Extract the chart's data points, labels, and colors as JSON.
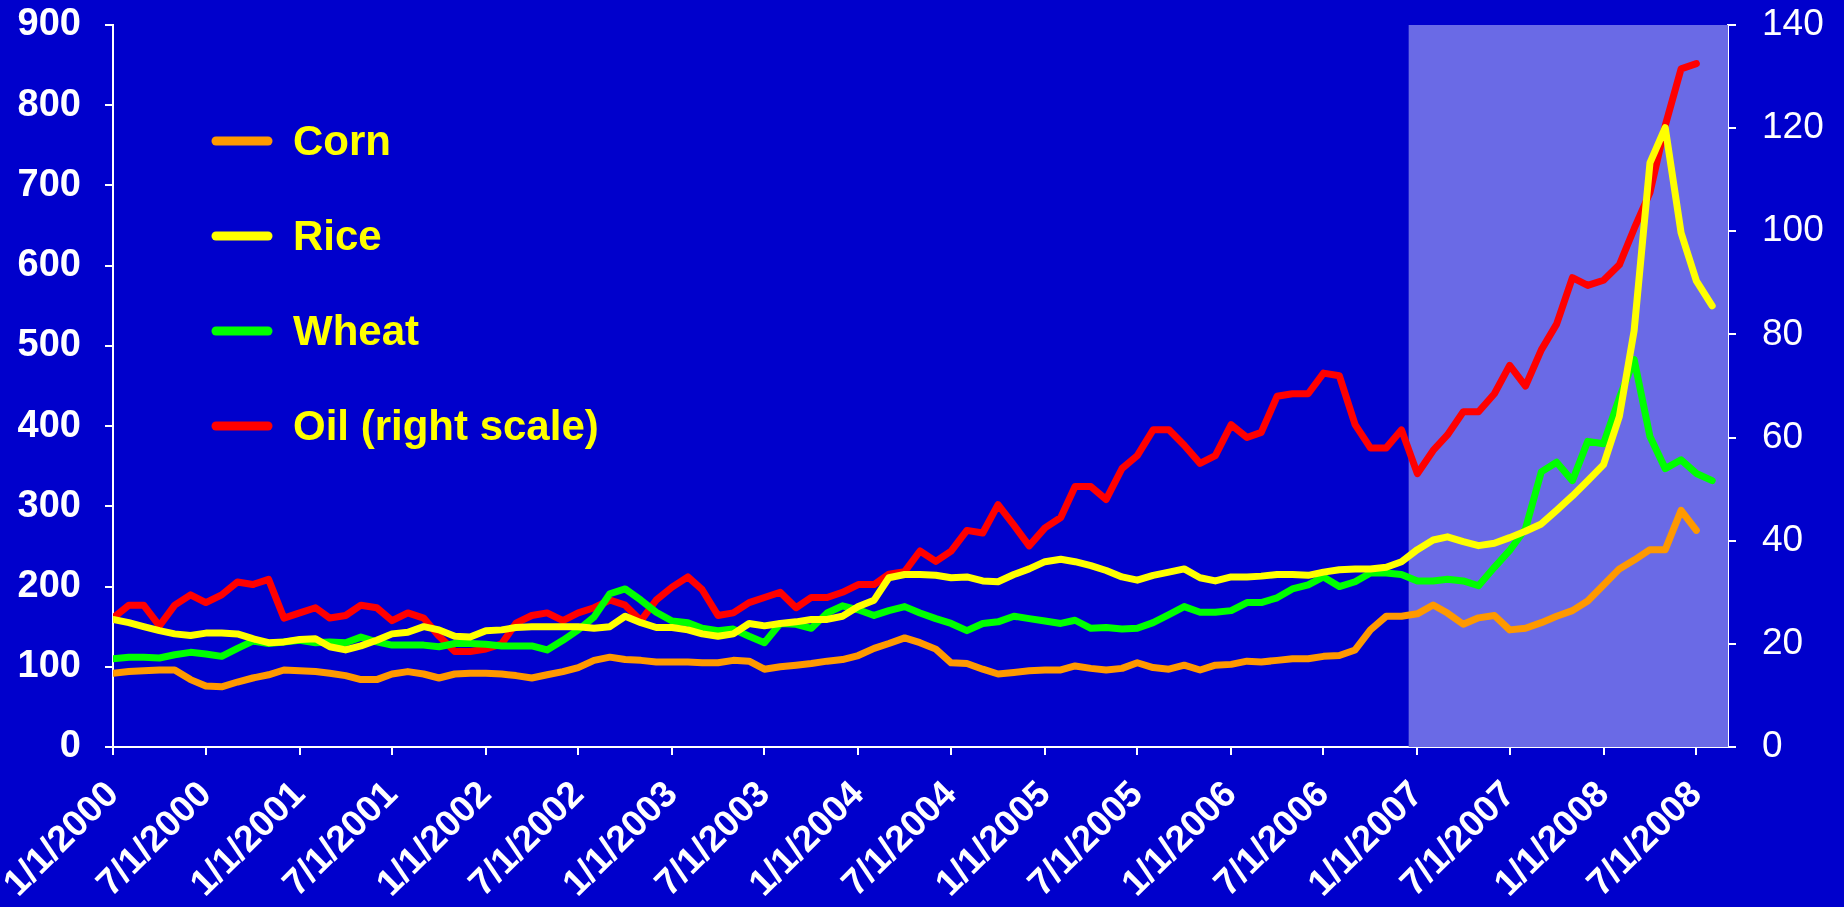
{
  "chart_data": {
    "type": "line",
    "x": [
      "2000-01",
      "2000-02",
      "2000-03",
      "2000-04",
      "2000-05",
      "2000-06",
      "2000-07",
      "2000-08",
      "2000-09",
      "2000-10",
      "2000-11",
      "2000-12",
      "2001-01",
      "2001-02",
      "2001-03",
      "2001-04",
      "2001-05",
      "2001-06",
      "2001-07",
      "2001-08",
      "2001-09",
      "2001-10",
      "2001-11",
      "2001-12",
      "2002-01",
      "2002-02",
      "2002-03",
      "2002-04",
      "2002-05",
      "2002-06",
      "2002-07",
      "2002-08",
      "2002-09",
      "2002-10",
      "2002-11",
      "2002-12",
      "2003-01",
      "2003-02",
      "2003-03",
      "2003-04",
      "2003-05",
      "2003-06",
      "2003-07",
      "2003-08",
      "2003-09",
      "2003-10",
      "2003-11",
      "2003-12",
      "2004-01",
      "2004-02",
      "2004-03",
      "2004-04",
      "2004-05",
      "2004-06",
      "2004-07",
      "2004-08",
      "2004-09",
      "2004-10",
      "2004-11",
      "2004-12",
      "2005-01",
      "2005-02",
      "2005-03",
      "2005-04",
      "2005-05",
      "2005-06",
      "2005-07",
      "2005-08",
      "2005-09",
      "2005-10",
      "2005-11",
      "2005-12",
      "2006-01",
      "2006-02",
      "2006-03",
      "2006-04",
      "2006-05",
      "2006-06",
      "2006-07",
      "2006-08",
      "2006-09",
      "2006-10",
      "2006-11",
      "2006-12",
      "2007-01",
      "2007-02",
      "2007-03",
      "2007-04",
      "2007-05",
      "2007-06",
      "2007-07",
      "2007-08",
      "2007-09",
      "2007-10",
      "2007-11",
      "2007-12",
      "2008-01",
      "2008-02",
      "2008-03",
      "2008-04",
      "2008-05",
      "2008-06",
      "2008-07",
      "2008-08"
    ],
    "series": [
      {
        "name": "Corn",
        "color": "#ff9900",
        "values": [
          92,
          94,
          95,
          96,
          96,
          84,
          76,
          75,
          81,
          86,
          90,
          96,
          95,
          94,
          92,
          89,
          84,
          84,
          91,
          94,
          91,
          86,
          91,
          92,
          92,
          91,
          89,
          86,
          90,
          94,
          99,
          108,
          112,
          109,
          108,
          106,
          106,
          106,
          105,
          105,
          108,
          107,
          97,
          100,
          102,
          104,
          107,
          109,
          114,
          123,
          129,
          136,
          130,
          122,
          105,
          104,
          97,
          91,
          93,
          95,
          96,
          96,
          101,
          98,
          96,
          98,
          105,
          99,
          97,
          102,
          96,
          102,
          103,
          107,
          106,
          108,
          110,
          110,
          113,
          114,
          121,
          146,
          163,
          163,
          166,
          177,
          167,
          153,
          161,
          164,
          146,
          148,
          155,
          163,
          170,
          182,
          202,
          222,
          233,
          246,
          246,
          295,
          270,
          null
        ]
      },
      {
        "name": "Rice",
        "color": "#ffff00",
        "values": [
          159,
          155,
          150,
          145,
          141,
          139,
          142,
          142,
          141,
          135,
          130,
          131,
          134,
          135,
          125,
          121,
          126,
          133,
          141,
          143,
          150,
          146,
          138,
          137,
          145,
          146,
          149,
          150,
          150,
          150,
          150,
          148,
          150,
          163,
          155,
          149,
          149,
          146,
          141,
          138,
          141,
          154,
          151,
          154,
          156,
          159,
          159,
          163,
          175,
          183,
          211,
          215,
          215,
          214,
          211,
          212,
          207,
          206,
          215,
          222,
          231,
          234,
          231,
          226,
          220,
          212,
          208,
          214,
          218,
          222,
          211,
          207,
          212,
          212,
          213,
          215,
          215,
          214,
          218,
          221,
          222,
          222,
          224,
          231,
          246,
          258,
          262,
          256,
          251,
          254,
          261,
          269,
          278,
          295,
          313,
          332,
          352,
          412,
          519,
          728,
          772,
          641,
          581,
          550
        ]
      },
      {
        "name": "Wheat",
        "color": "#00ff00",
        "values": [
          110,
          112,
          112,
          111,
          115,
          118,
          116,
          113,
          123,
          132,
          129,
          131,
          133,
          130,
          131,
          130,
          137,
          131,
          127,
          127,
          127,
          125,
          129,
          129,
          128,
          126,
          126,
          126,
          121,
          133,
          146,
          162,
          191,
          197,
          183,
          168,
          157,
          155,
          148,
          145,
          147,
          138,
          130,
          154,
          153,
          148,
          167,
          176,
          171,
          164,
          170,
          175,
          167,
          160,
          154,
          145,
          154,
          156,
          163,
          160,
          157,
          154,
          158,
          148,
          149,
          147,
          148,
          155,
          165,
          175,
          168,
          168,
          170,
          180,
          180,
          186,
          197,
          202,
          212,
          200,
          206,
          217,
          217,
          215,
          207,
          207,
          209,
          207,
          201,
          224,
          245,
          272,
          343,
          355,
          332,
          381,
          378,
          435,
          483,
          387,
          347,
          358,
          341,
          332
        ]
      },
      {
        "name": "Oil (right scale)",
        "color": "#ff0000",
        "axis": "y2",
        "values": [
          25,
          27.5,
          27.5,
          23.5,
          27.5,
          29.5,
          28,
          29.5,
          32,
          31.5,
          32.5,
          25,
          26,
          27,
          25,
          25.5,
          27.5,
          27,
          24.5,
          26,
          25,
          21.5,
          18.5,
          18.5,
          19,
          20,
          24,
          25.5,
          26,
          24.5,
          26,
          27,
          28.5,
          27.5,
          24.5,
          28.5,
          31,
          33,
          30.5,
          25.5,
          26,
          28,
          29,
          30,
          27,
          29,
          29,
          30,
          31.5,
          31.5,
          33.5,
          34,
          38,
          36,
          38,
          42,
          41.5,
          47,
          43,
          39,
          42.5,
          44.5,
          50.5,
          50.5,
          48,
          54,
          56.5,
          61.5,
          61.5,
          58.5,
          55,
          56.5,
          62.5,
          60,
          61,
          68,
          68.5,
          68.5,
          72.5,
          72,
          62.5,
          58,
          58,
          61.5,
          53,
          57.5,
          60.5,
          65,
          65,
          68.5,
          74,
          70,
          77,
          82,
          91,
          89.5,
          90.5,
          93.5,
          100.5,
          107.5,
          120.5,
          131.5,
          132.5,
          null
        ]
      }
    ],
    "xlim": [
      "2000-01",
      "2008-09"
    ],
    "xticks": [
      {
        "value": "2000-01",
        "label": "1/1/2000"
      },
      {
        "value": "2000-07",
        "label": "7/1/2000"
      },
      {
        "value": "2001-01",
        "label": "1/1/2001"
      },
      {
        "value": "2001-07",
        "label": "7/1/2001"
      },
      {
        "value": "2002-01",
        "label": "1/1/2002"
      },
      {
        "value": "2002-07",
        "label": "7/1/2002"
      },
      {
        "value": "2003-01",
        "label": "1/1/2003"
      },
      {
        "value": "2003-07",
        "label": "7/1/2003"
      },
      {
        "value": "2004-01",
        "label": "1/1/2004"
      },
      {
        "value": "2004-07",
        "label": "7/1/2004"
      },
      {
        "value": "2005-01",
        "label": "1/1/2005"
      },
      {
        "value": "2005-07",
        "label": "7/1/2005"
      },
      {
        "value": "2006-01",
        "label": "1/1/2006"
      },
      {
        "value": "2006-07",
        "label": "7/1/2006"
      },
      {
        "value": "2007-01",
        "label": "1/1/2007"
      },
      {
        "value": "2007-07",
        "label": "7/1/2007"
      },
      {
        "value": "2008-01",
        "label": "1/1/2008"
      },
      {
        "value": "2008-07",
        "label": "7/1/2008"
      }
    ],
    "ylim": [
      0,
      900
    ],
    "yticks": [
      0,
      100,
      200,
      300,
      400,
      500,
      600,
      700,
      800,
      900
    ],
    "y2lim": [
      0,
      140
    ],
    "y2ticks": [
      0,
      20,
      40,
      60,
      80,
      100,
      120,
      140
    ],
    "bands": [
      {
        "axis": "x",
        "from": "2006-12-15",
        "to": "2008-09",
        "color": "#6a6ae6"
      }
    ],
    "legend": "top left"
  }
}
